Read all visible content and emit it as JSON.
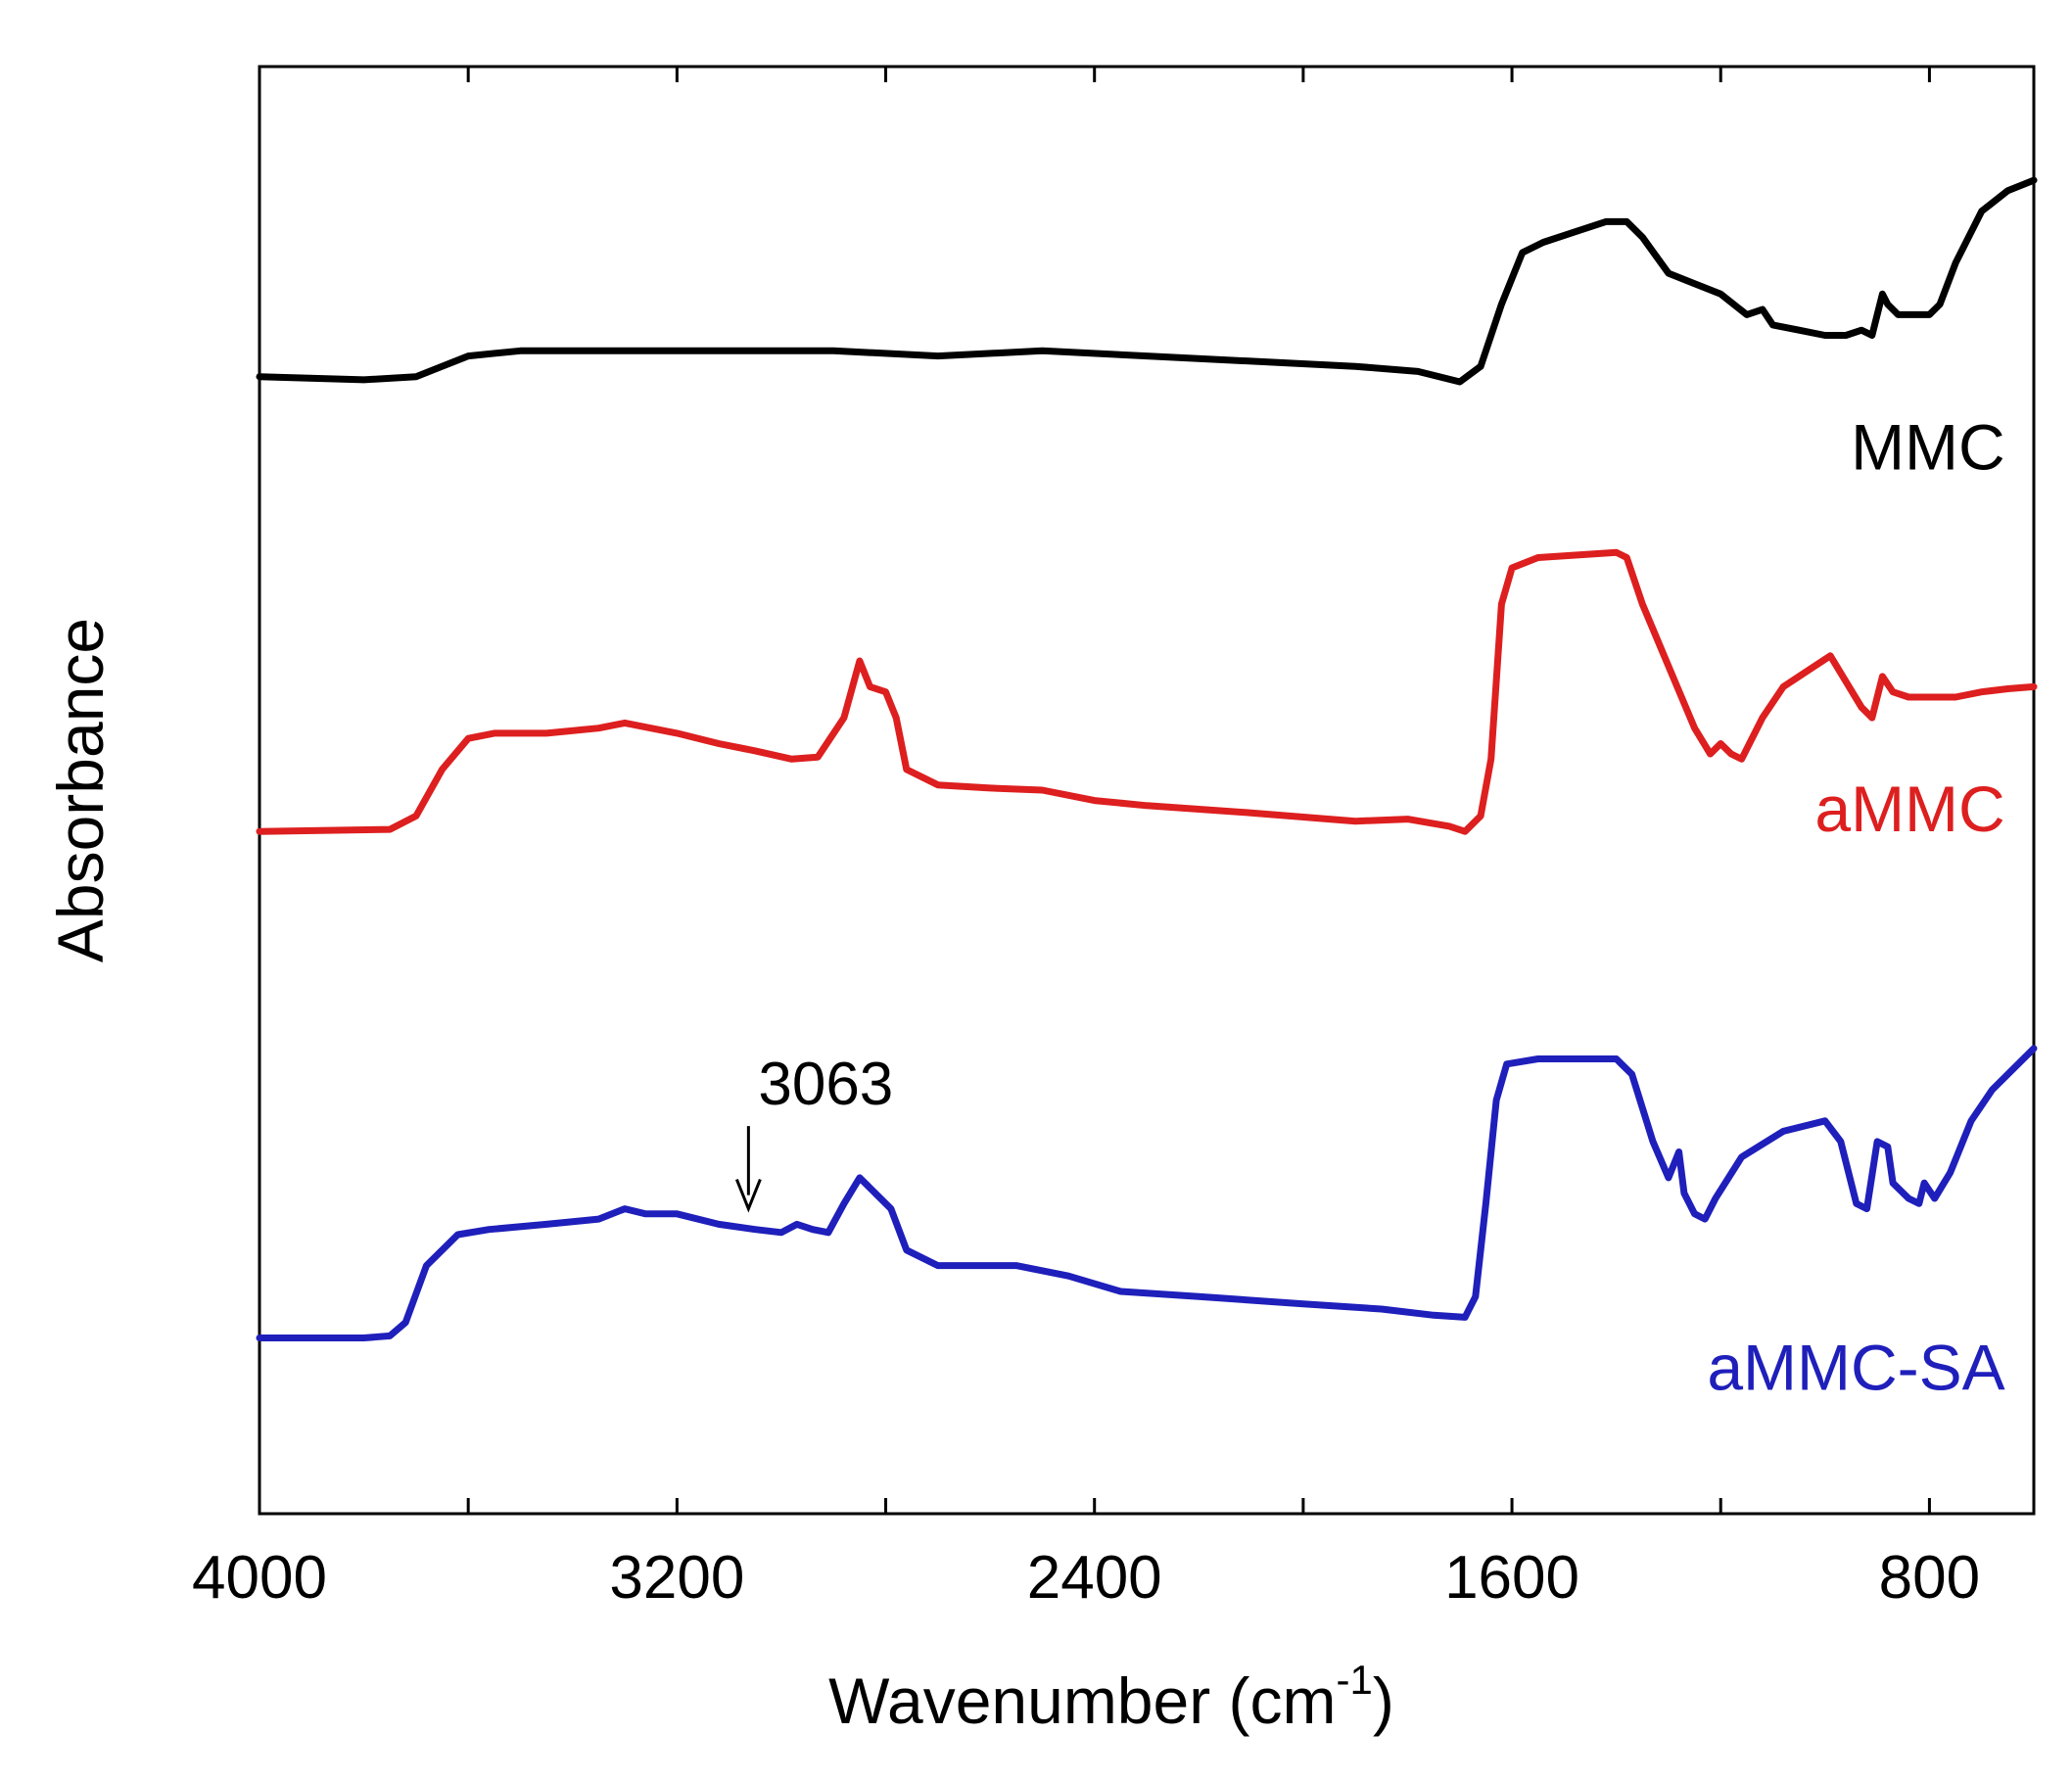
{
  "chart_data": {
    "type": "line",
    "title": "",
    "xlabel": "Wavenumber (cm",
    "xlabel_sup": "-1",
    "xlabel_close": ")",
    "ylabel": "Absorbance",
    "xlim": [
      4000,
      600
    ],
    "ylim": [
      0,
      14
    ],
    "grid": false,
    "xticks": [
      4000,
      3600,
      3200,
      2800,
      2400,
      2000,
      1600,
      1200,
      800
    ],
    "xtick_labels": [
      "4000",
      "3200",
      "2400",
      "1600",
      "800"
    ],
    "series": [
      {
        "name": "MMC",
        "color": "#000000",
        "label_anchor": [
          655,
          10.1
        ],
        "points": [
          [
            4000,
            11.0
          ],
          [
            3800,
            10.97
          ],
          [
            3700,
            11.0
          ],
          [
            3600,
            11.2
          ],
          [
            3500,
            11.25
          ],
          [
            3300,
            11.25
          ],
          [
            3100,
            11.25
          ],
          [
            2900,
            11.25
          ],
          [
            2700,
            11.2
          ],
          [
            2500,
            11.25
          ],
          [
            2300,
            11.2
          ],
          [
            2100,
            11.15
          ],
          [
            1900,
            11.1
          ],
          [
            1780,
            11.05
          ],
          [
            1700,
            10.95
          ],
          [
            1660,
            11.1
          ],
          [
            1620,
            11.7
          ],
          [
            1580,
            12.2
          ],
          [
            1540,
            12.3
          ],
          [
            1480,
            12.4
          ],
          [
            1420,
            12.5
          ],
          [
            1380,
            12.5
          ],
          [
            1350,
            12.35
          ],
          [
            1300,
            12.0
          ],
          [
            1250,
            11.9
          ],
          [
            1200,
            11.8
          ],
          [
            1150,
            11.6
          ],
          [
            1120,
            11.65
          ],
          [
            1100,
            11.5
          ],
          [
            1050,
            11.45
          ],
          [
            1000,
            11.4
          ],
          [
            960,
            11.4
          ],
          [
            930,
            11.45
          ],
          [
            910,
            11.4
          ],
          [
            890,
            11.8
          ],
          [
            880,
            11.7
          ],
          [
            860,
            11.6
          ],
          [
            800,
            11.6
          ],
          [
            780,
            11.7
          ],
          [
            750,
            12.1
          ],
          [
            700,
            12.6
          ],
          [
            650,
            12.8
          ],
          [
            600,
            12.9
          ]
        ]
      },
      {
        "name": "aMMC",
        "color": "#dd1f1f",
        "label_anchor": [
          655,
          6.6
        ],
        "points": [
          [
            4000,
            6.6
          ],
          [
            3750,
            6.62
          ],
          [
            3700,
            6.75
          ],
          [
            3650,
            7.2
          ],
          [
            3600,
            7.5
          ],
          [
            3550,
            7.55
          ],
          [
            3450,
            7.55
          ],
          [
            3350,
            7.6
          ],
          [
            3300,
            7.65
          ],
          [
            3250,
            7.6
          ],
          [
            3200,
            7.55
          ],
          [
            3120,
            7.45
          ],
          [
            3050,
            7.38
          ],
          [
            2980,
            7.3
          ],
          [
            2930,
            7.32
          ],
          [
            2880,
            7.7
          ],
          [
            2850,
            8.25
          ],
          [
            2830,
            8.0
          ],
          [
            2800,
            7.95
          ],
          [
            2780,
            7.7
          ],
          [
            2760,
            7.2
          ],
          [
            2700,
            7.05
          ],
          [
            2600,
            7.02
          ],
          [
            2500,
            7.0
          ],
          [
            2400,
            6.9
          ],
          [
            2300,
            6.85
          ],
          [
            2100,
            6.78
          ],
          [
            1900,
            6.7
          ],
          [
            1800,
            6.72
          ],
          [
            1720,
            6.65
          ],
          [
            1690,
            6.6
          ],
          [
            1660,
            6.75
          ],
          [
            1640,
            7.3
          ],
          [
            1620,
            8.8
          ],
          [
            1600,
            9.15
          ],
          [
            1550,
            9.25
          ],
          [
            1400,
            9.3
          ],
          [
            1380,
            9.25
          ],
          [
            1350,
            8.8
          ],
          [
            1300,
            8.2
          ],
          [
            1250,
            7.6
          ],
          [
            1220,
            7.35
          ],
          [
            1200,
            7.45
          ],
          [
            1180,
            7.35
          ],
          [
            1160,
            7.3
          ],
          [
            1120,
            7.7
          ],
          [
            1080,
            8.0
          ],
          [
            1020,
            8.2
          ],
          [
            990,
            8.3
          ],
          [
            960,
            8.05
          ],
          [
            930,
            7.8
          ],
          [
            910,
            7.7
          ],
          [
            890,
            8.1
          ],
          [
            870,
            7.95
          ],
          [
            840,
            7.9
          ],
          [
            800,
            7.9
          ],
          [
            750,
            7.9
          ],
          [
            700,
            7.95
          ],
          [
            650,
            7.98
          ],
          [
            600,
            8.0
          ]
        ]
      },
      {
        "name": "aMMC-SA",
        "color": "#1f1fbb",
        "label_anchor": [
          655,
          1.2
        ],
        "points": [
          [
            4000,
            1.7
          ],
          [
            3900,
            1.7
          ],
          [
            3800,
            1.7
          ],
          [
            3750,
            1.72
          ],
          [
            3720,
            1.85
          ],
          [
            3680,
            2.4
          ],
          [
            3620,
            2.7
          ],
          [
            3560,
            2.75
          ],
          [
            3450,
            2.8
          ],
          [
            3350,
            2.85
          ],
          [
            3300,
            2.95
          ],
          [
            3260,
            2.9
          ],
          [
            3200,
            2.9
          ],
          [
            3120,
            2.8
          ],
          [
            3050,
            2.75
          ],
          [
            3000,
            2.72
          ],
          [
            2970,
            2.8
          ],
          [
            2940,
            2.75
          ],
          [
            2910,
            2.72
          ],
          [
            2880,
            3.0
          ],
          [
            2850,
            3.25
          ],
          [
            2820,
            3.1
          ],
          [
            2790,
            2.95
          ],
          [
            2760,
            2.55
          ],
          [
            2700,
            2.4
          ],
          [
            2550,
            2.4
          ],
          [
            2450,
            2.3
          ],
          [
            2350,
            2.15
          ],
          [
            2200,
            2.1
          ],
          [
            2000,
            2.03
          ],
          [
            1850,
            1.98
          ],
          [
            1750,
            1.92
          ],
          [
            1690,
            1.9
          ],
          [
            1670,
            2.1
          ],
          [
            1650,
            3.0
          ],
          [
            1630,
            4.0
          ],
          [
            1610,
            4.35
          ],
          [
            1550,
            4.4
          ],
          [
            1400,
            4.4
          ],
          [
            1370,
            4.25
          ],
          [
            1330,
            3.6
          ],
          [
            1300,
            3.25
          ],
          [
            1280,
            3.5
          ],
          [
            1270,
            3.1
          ],
          [
            1250,
            2.9
          ],
          [
            1230,
            2.85
          ],
          [
            1210,
            3.05
          ],
          [
            1160,
            3.45
          ],
          [
            1080,
            3.7
          ],
          [
            1000,
            3.8
          ],
          [
            970,
            3.6
          ],
          [
            940,
            3.0
          ],
          [
            920,
            2.95
          ],
          [
            900,
            3.6
          ],
          [
            880,
            3.55
          ],
          [
            870,
            3.2
          ],
          [
            840,
            3.05
          ],
          [
            820,
            3.0
          ],
          [
            810,
            3.2
          ],
          [
            790,
            3.05
          ],
          [
            760,
            3.3
          ],
          [
            720,
            3.8
          ],
          [
            680,
            4.1
          ],
          [
            640,
            4.3
          ],
          [
            600,
            4.5
          ]
        ]
      }
    ],
    "annotations": [
      {
        "text": "3063",
        "x": 3063,
        "y_tip": 2.95,
        "y_tail": 3.75
      }
    ]
  }
}
